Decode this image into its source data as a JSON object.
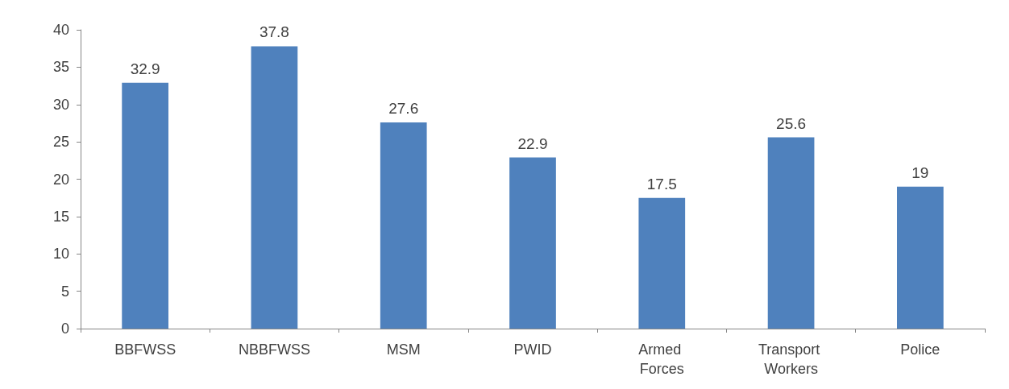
{
  "chart_data": {
    "type": "bar",
    "categories": [
      "BBFWSS",
      "NBBFWSS",
      "MSM",
      "PWID",
      "Armed Forces",
      "Transport Workers",
      "Police"
    ],
    "values": [
      32.9,
      37.8,
      27.6,
      22.9,
      17.5,
      25.6,
      19
    ],
    "color": "#4f81bd",
    "ylim": [
      0,
      40
    ],
    "yticks": [
      0,
      5,
      10,
      15,
      20,
      25,
      30,
      35,
      40
    ],
    "data_labels": true,
    "grid": false
  }
}
